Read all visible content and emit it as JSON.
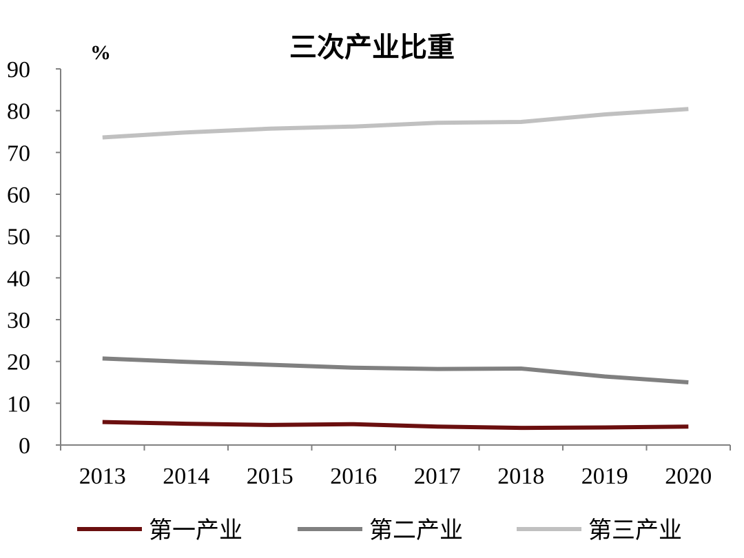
{
  "chart_data": {
    "type": "line",
    "title": "三次产业比重",
    "ylabel": "%",
    "xlabel": "",
    "x": [
      "2013",
      "2014",
      "2015",
      "2016",
      "2017",
      "2018",
      "2019",
      "2020"
    ],
    "ylim": [
      0,
      90
    ],
    "yticks": [
      "0",
      "10",
      "20",
      "30",
      "40",
      "50",
      "60",
      "70",
      "80",
      "90"
    ],
    "grid": false,
    "legend_position": "bottom",
    "series": [
      {
        "name": "第一产业",
        "color": "#6b0f0f",
        "values": [
          5.5,
          5.1,
          4.8,
          5.0,
          4.4,
          4.1,
          4.2,
          4.4
        ]
      },
      {
        "name": "第二产业",
        "color": "#808080",
        "values": [
          20.7,
          19.9,
          19.2,
          18.5,
          18.2,
          18.3,
          16.4,
          15.0
        ]
      },
      {
        "name": "第三产业",
        "color": "#c0c0c0",
        "values": [
          73.6,
          74.8,
          75.7,
          76.2,
          77.1,
          77.3,
          79.1,
          80.4
        ]
      }
    ]
  }
}
